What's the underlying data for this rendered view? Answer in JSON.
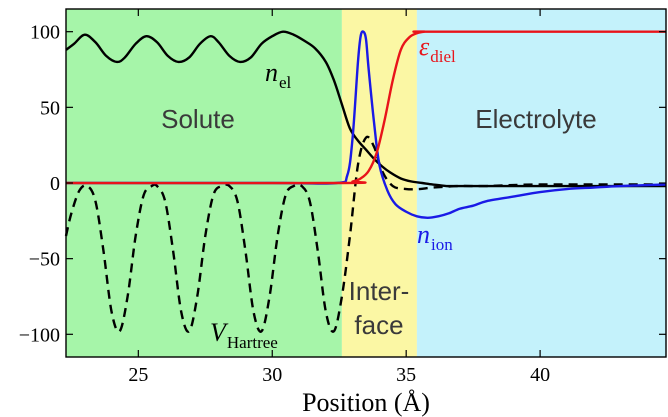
{
  "chart_data": {
    "type": "line",
    "title": "",
    "xlabel": "Position (Å)",
    "ylabel": "",
    "xlim": [
      22.3,
      44.7
    ],
    "ylim": [
      -115,
      115
    ],
    "xticks": [
      25,
      30,
      35,
      40
    ],
    "yticks": [
      100,
      50,
      0,
      -50,
      -100
    ],
    "xtick_labels": [
      "25",
      "30",
      "35",
      "40"
    ],
    "ytick_labels": [
      "100",
      "50",
      "0",
      "−50",
      "−100"
    ],
    "regions": [
      {
        "label": "Solute",
        "x0": 22.3,
        "x1": 32.6,
        "color": "#a6f5a9"
      },
      {
        "label": "Inter-",
        "label2": "face",
        "x0": 32.6,
        "x1": 35.4,
        "color": "#fbf7a4"
      },
      {
        "label": "Electrolyte",
        "x0": 35.4,
        "x1": 44.7,
        "color": "#c4f2fb"
      }
    ],
    "series": [
      {
        "label_main": "n",
        "label_sub": "el",
        "color": "#000000",
        "dashed": false,
        "x": [
          22.3,
          22.6,
          23.0,
          23.4,
          23.8,
          24.2,
          24.5,
          24.9,
          25.3,
          25.7,
          26.1,
          26.5,
          26.9,
          27.3,
          27.7,
          28.0,
          28.4,
          28.8,
          29.2,
          29.6,
          30.0,
          30.4,
          30.8,
          31.2,
          31.6,
          32.0,
          32.3,
          32.6,
          32.9,
          33.2,
          33.5,
          33.8,
          34.1,
          34.4,
          34.8,
          35.2,
          35.6,
          36.0,
          36.5,
          37.0,
          38.0,
          39.0,
          40.0,
          42.0,
          44.7
        ],
        "y": [
          88,
          92,
          98,
          93,
          84,
          80,
          83,
          92,
          97,
          93,
          84,
          80,
          83,
          92,
          97,
          93,
          84,
          80,
          83,
          92,
          97,
          100,
          98,
          94,
          89,
          80,
          68,
          52,
          36,
          28,
          22,
          16,
          11,
          7,
          3,
          1,
          0,
          -1,
          -2,
          -2,
          -2,
          -2,
          -2,
          -2,
          -2
        ]
      },
      {
        "label_main": "V",
        "label_sub": "Hartree",
        "color": "#000000",
        "dashed": true,
        "x": [
          22.3,
          22.5,
          22.8,
          23.1,
          23.4,
          23.7,
          24.0,
          24.3,
          24.6,
          24.9,
          25.2,
          25.5,
          25.7,
          26.0,
          26.3,
          26.6,
          26.9,
          27.2,
          27.5,
          27.8,
          28.1,
          28.4,
          28.7,
          29.0,
          29.3,
          29.6,
          29.9,
          30.2,
          30.5,
          30.8,
          31.1,
          31.4,
          31.7,
          32.0,
          32.3,
          32.6,
          32.9,
          33.2,
          33.5,
          33.8,
          34.1,
          34.5,
          35.0,
          35.5,
          36.0,
          37.0,
          38.0,
          40.0,
          44.7
        ],
        "y": [
          -35,
          -20,
          -5,
          -2,
          -12,
          -45,
          -85,
          -98,
          -75,
          -35,
          -8,
          -2,
          -2,
          -12,
          -45,
          -85,
          -98,
          -75,
          -35,
          -8,
          -2,
          -2,
          -12,
          -45,
          -85,
          -98,
          -75,
          -35,
          -8,
          -2,
          -2,
          -12,
          -45,
          -85,
          -98,
          -75,
          -35,
          12,
          30,
          24,
          8,
          -2,
          -4,
          -4,
          -3,
          -2,
          -2,
          -1,
          -1
        ]
      },
      {
        "label_main": "n",
        "label_sub": "ion",
        "color": "#1a1ae6",
        "dashed": false,
        "x": [
          22.3,
          30.0,
          32.4,
          32.8,
          33.0,
          33.2,
          33.3,
          33.4,
          33.5,
          33.6,
          33.8,
          34.0,
          34.3,
          34.6,
          35.0,
          35.4,
          35.8,
          36.2,
          36.6,
          37.0,
          37.5,
          38.0,
          39.0,
          40.0,
          41.0,
          42.0,
          43.0,
          44.7
        ],
        "y": [
          0,
          0,
          0,
          5,
          30,
          80,
          97,
          100,
          95,
          75,
          40,
          12,
          -5,
          -14,
          -19,
          -22,
          -23,
          -22,
          -20,
          -17,
          -15,
          -12,
          -9,
          -6,
          -4,
          -3,
          -2,
          -1
        ]
      },
      {
        "label_main": "ε",
        "label_sub": "diel",
        "color": "#e8141a",
        "dashed": false,
        "x": [
          22.3,
          32.6,
          33.0,
          33.3,
          33.6,
          33.9,
          34.2,
          34.5,
          34.8,
          35.1,
          35.4,
          35.7,
          36.0,
          44.7
        ],
        "y": [
          0,
          0,
          1,
          3,
          8,
          20,
          42,
          68,
          88,
          96,
          99,
          100,
          100,
          100
        ]
      }
    ]
  }
}
